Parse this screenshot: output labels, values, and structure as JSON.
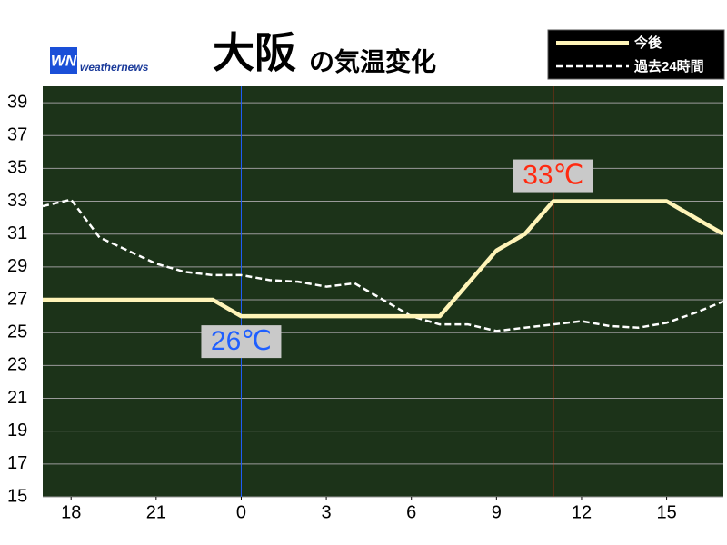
{
  "chart_data": {
    "type": "line",
    "title": "大阪",
    "subtitle": "の気温変化",
    "logo_text": "WN",
    "brand": "weathernews",
    "x": [
      17,
      18,
      19,
      20,
      21,
      22,
      23,
      24,
      25,
      26,
      27,
      28,
      29,
      30,
      31,
      32,
      33,
      34,
      35,
      36,
      37,
      38,
      39,
      40,
      41
    ],
    "series": [
      {
        "name": "今後",
        "color": "#fff4b8",
        "dashed": false,
        "values": [
          27,
          27,
          27,
          27,
          27,
          27,
          27,
          26,
          26,
          26,
          26,
          26,
          26,
          26,
          26,
          28,
          30,
          31,
          33,
          33,
          33,
          33,
          33,
          32,
          31
        ]
      },
      {
        "name": "過去24時間",
        "color": "#ffffff",
        "dashed": true,
        "values": [
          32.7,
          33.1,
          30.8,
          30.0,
          29.2,
          28.7,
          28.5,
          28.5,
          28.2,
          28.1,
          27.8,
          28.0,
          27.0,
          26.0,
          25.5,
          25.5,
          25.1,
          25.3,
          25.5,
          25.7,
          25.4,
          25.3,
          25.6,
          26.2,
          26.9
        ]
      }
    ],
    "annotations": [
      {
        "x": 24,
        "value": 26,
        "text": "26℃",
        "color": "#1f5fff",
        "position": "below"
      },
      {
        "x": 35,
        "value": 33,
        "text": "33℃",
        "color": "#ff2a10",
        "position": "above"
      }
    ],
    "xlim": [
      17,
      41
    ],
    "xticks": [
      18,
      21,
      {
        "value": 24,
        "label": "0"
      },
      {
        "value": 27,
        "label": "3"
      },
      {
        "value": 30,
        "label": "6"
      },
      {
        "value": 33,
        "label": "9"
      },
      {
        "value": 36,
        "label": "12"
      },
      {
        "value": 39,
        "label": "15"
      }
    ],
    "ylim": [
      15,
      40
    ],
    "yticks": [
      15,
      17,
      19,
      21,
      23,
      25,
      27,
      29,
      31,
      33,
      35,
      37,
      39
    ],
    "grid": true,
    "legend": "top-right",
    "background": "#1c3319"
  }
}
